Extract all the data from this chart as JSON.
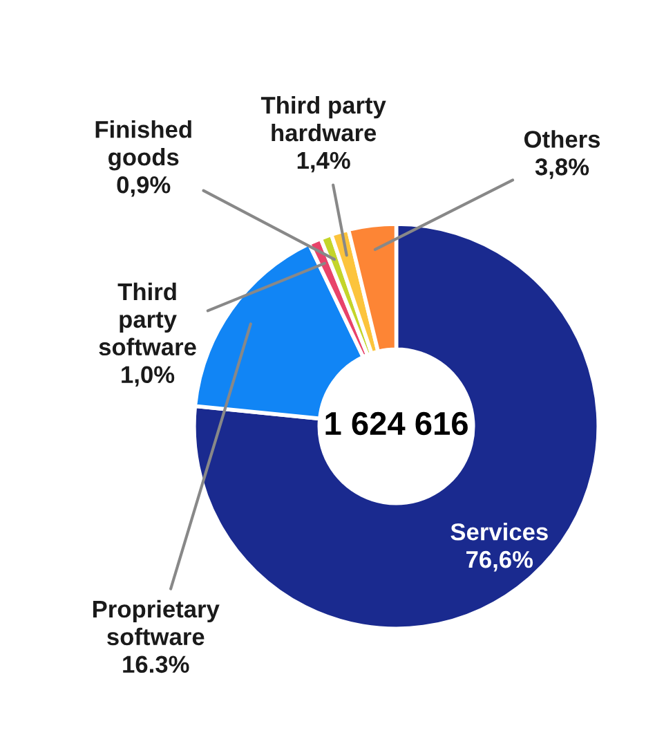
{
  "chart_data": {
    "type": "donut",
    "categories": [
      "Services",
      "Proprietary software",
      "Third party software",
      "Finished goods",
      "Third party hardware",
      "Others"
    ],
    "values": [
      76.6,
      16.3,
      1.0,
      0.9,
      1.4,
      3.8
    ],
    "colors": [
      "#1a2a8f",
      "#1185f5",
      "#e8436a",
      "#c4d52a",
      "#fcc43c",
      "#fd8535"
    ],
    "value_labels": [
      "76,6%",
      "16.3%",
      "1,0%",
      "0,9%",
      "1,4%",
      "3,8%"
    ],
    "annotations": [
      "1 624 616"
    ],
    "legend": false
  }
}
